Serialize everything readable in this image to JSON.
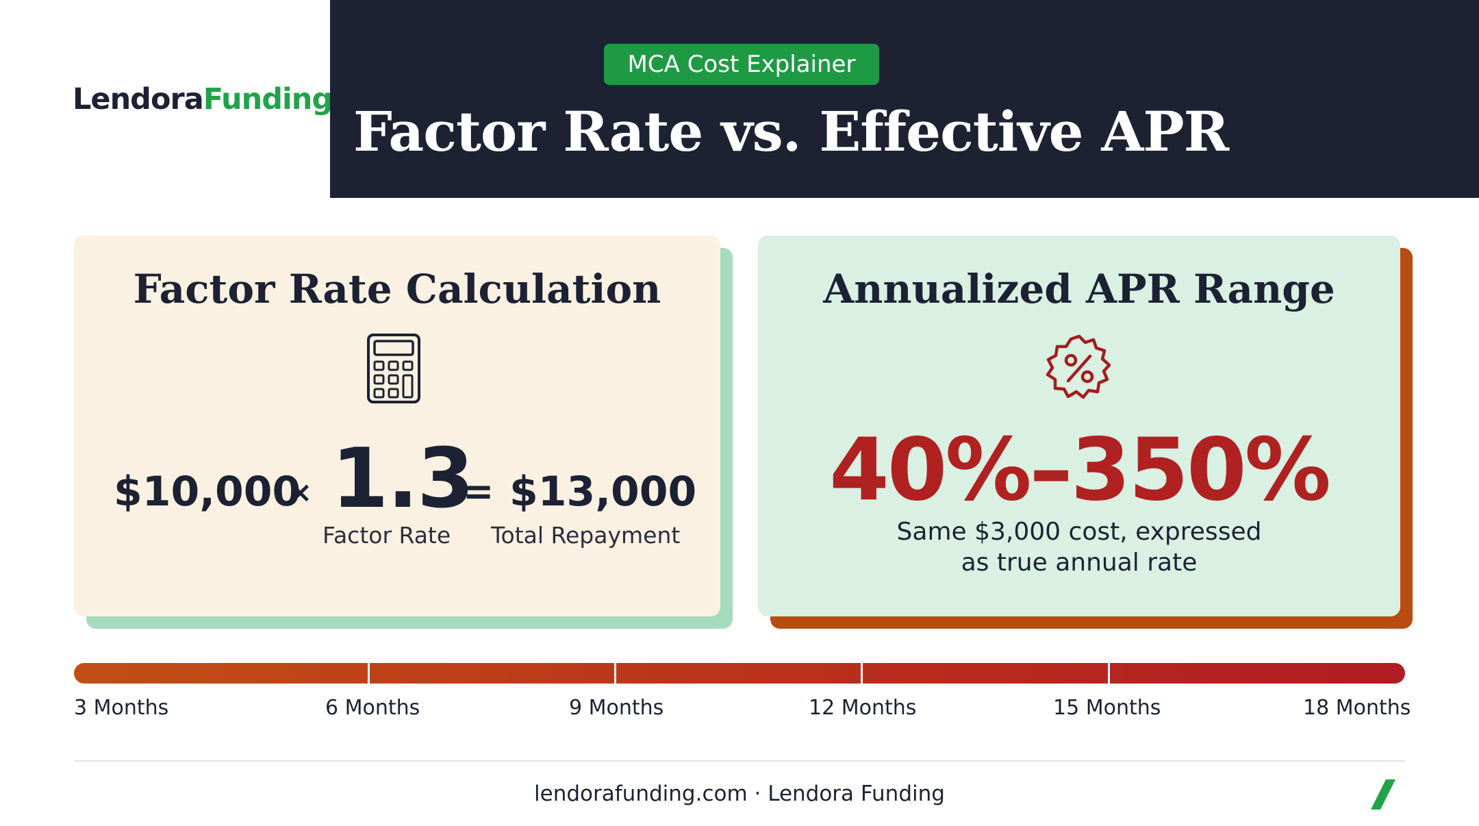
{
  "brand": {
    "name_part1": "Lendora",
    "name_part2": "Funding",
    "colors": {
      "navy": "#1d2233",
      "green": "#1f9a44",
      "red": "#b02121",
      "orange": "#b84d12"
    }
  },
  "header": {
    "badge": "MCA Cost Explainer",
    "title": "Factor Rate vs. Effective APR"
  },
  "left_card": {
    "heading": "Factor Rate Calculation",
    "icon": "calculator-icon",
    "principal": "$10,000",
    "times": "×",
    "factor": "1.3",
    "equals": "=",
    "repayment": "$13,000",
    "factor_label": "Factor Rate",
    "repayment_label": "Total Repayment"
  },
  "right_card": {
    "heading": "Annualized APR Range",
    "icon": "percent-badge-icon",
    "range": "40%–350%",
    "description_line1": "Same $3,000 cost, expressed",
    "description_line2": "as true annual rate"
  },
  "timeline": {
    "labels": [
      "3 Months",
      "6 Months",
      "9 Months",
      "12 Months",
      "15 Months",
      "18 Months"
    ]
  },
  "footer": {
    "text": "lendorafunding.com · Lendora Funding",
    "icon": "slash-icon"
  }
}
